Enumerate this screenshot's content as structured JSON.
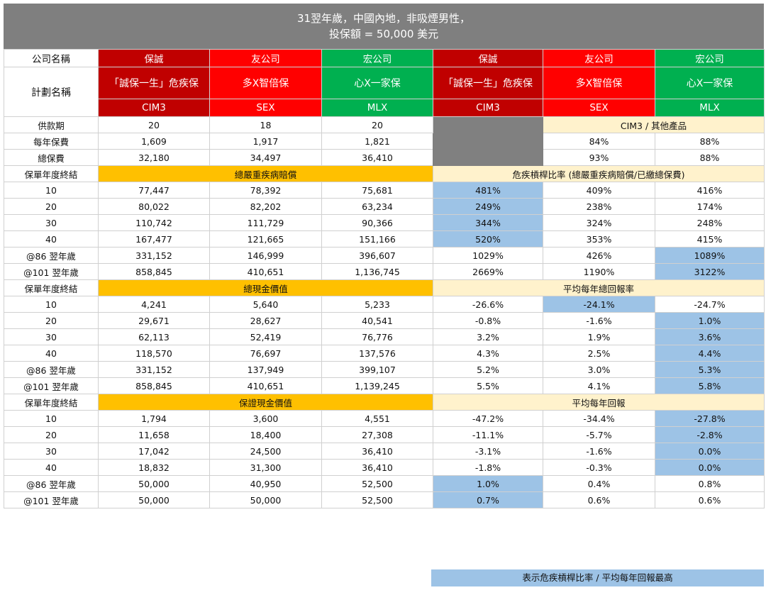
{
  "title": {
    "line1": "31翌年歲，中國內地，非吸煙男性，",
    "line2": "投保額 = 50,000 美元"
  },
  "header": {
    "company_label": "公司名稱",
    "plan_label": "計劃名稱",
    "companies": [
      "保誠",
      "友公司",
      "宏公司",
      "保誠",
      "友公司",
      "宏公司"
    ],
    "plans": [
      "「誠保一生」危疾保",
      "多X智倍保",
      "心X一家保",
      "「誠保一生」危疾保",
      "多X智倍保",
      "心X一家保"
    ],
    "codes": [
      "CIM3",
      "SEX",
      "MLX",
      "CIM3",
      "SEX",
      "MLX"
    ]
  },
  "basics": {
    "compare_label": "CIM3 / 其他產品",
    "rows": [
      {
        "label": "供款期",
        "values": [
          "20",
          "18",
          "20"
        ],
        "ratios": [
          "",
          ""
        ]
      },
      {
        "label": "每年保費",
        "values": [
          "1,609",
          "1,917",
          "1,821"
        ],
        "ratios": [
          "84%",
          "88%"
        ]
      },
      {
        "label": "總保費",
        "values": [
          "32,180",
          "34,497",
          "36,410"
        ],
        "ratios": [
          "93%",
          "88%"
        ]
      }
    ]
  },
  "sections": [
    {
      "label": "保單年度終結",
      "left_title": "總嚴重疾病賠償",
      "right_title": "危疾槓桿比率 (總嚴重疾病賠償/已繳總保費)",
      "rows": [
        {
          "label": "10",
          "values": [
            "77,447",
            "78,392",
            "75,681"
          ],
          "ratios": [
            "481%",
            "409%",
            "416%"
          ],
          "hi": [
            0
          ]
        },
        {
          "label": "20",
          "values": [
            "80,022",
            "82,202",
            "63,234"
          ],
          "ratios": [
            "249%",
            "238%",
            "174%"
          ],
          "hi": [
            0
          ]
        },
        {
          "label": "30",
          "values": [
            "110,742",
            "111,729",
            "90,366"
          ],
          "ratios": [
            "344%",
            "324%",
            "248%"
          ],
          "hi": [
            0
          ]
        },
        {
          "label": "40",
          "values": [
            "167,477",
            "121,665",
            "151,166"
          ],
          "ratios": [
            "520%",
            "353%",
            "415%"
          ],
          "hi": [
            0
          ]
        },
        {
          "label": "@86 翌年歲",
          "values": [
            "331,152",
            "146,999",
            "396,607"
          ],
          "ratios": [
            "1029%",
            "426%",
            "1089%"
          ],
          "hi": [
            2
          ]
        },
        {
          "label": "@101 翌年歲",
          "values": [
            "858,845",
            "410,651",
            "1,136,745"
          ],
          "ratios": [
            "2669%",
            "1190%",
            "3122%"
          ],
          "hi": [
            2
          ]
        }
      ]
    },
    {
      "label": "保單年度終結",
      "left_title": "總現金價值",
      "right_title": "平均每年總回報率",
      "rows": [
        {
          "label": "10",
          "values": [
            "4,241",
            "5,640",
            "5,233"
          ],
          "ratios": [
            "-26.6%",
            "-24.1%",
            "-24.7%"
          ],
          "hi": [
            1
          ]
        },
        {
          "label": "20",
          "values": [
            "29,671",
            "28,627",
            "40,541"
          ],
          "ratios": [
            "-0.8%",
            "-1.6%",
            "1.0%"
          ],
          "hi": [
            2
          ]
        },
        {
          "label": "30",
          "values": [
            "62,113",
            "52,419",
            "76,776"
          ],
          "ratios": [
            "3.2%",
            "1.9%",
            "3.6%"
          ],
          "hi": [
            2
          ]
        },
        {
          "label": "40",
          "values": [
            "118,570",
            "76,697",
            "137,576"
          ],
          "ratios": [
            "4.3%",
            "2.5%",
            "4.4%"
          ],
          "hi": [
            2
          ]
        },
        {
          "label": "@86 翌年歲",
          "values": [
            "331,152",
            "137,949",
            "399,107"
          ],
          "ratios": [
            "5.2%",
            "3.0%",
            "5.3%"
          ],
          "hi": [
            2
          ]
        },
        {
          "label": "@101 翌年歲",
          "values": [
            "858,845",
            "410,651",
            "1,139,245"
          ],
          "ratios": [
            "5.5%",
            "4.1%",
            "5.8%"
          ],
          "hi": [
            2
          ]
        }
      ]
    },
    {
      "label": "保單年度終結",
      "left_title": "保證現金價值",
      "right_title": "平均每年回報",
      "rows": [
        {
          "label": "10",
          "values": [
            "1,794",
            "3,600",
            "4,551"
          ],
          "ratios": [
            "-47.2%",
            "-34.4%",
            "-27.8%"
          ],
          "hi": [
            2
          ]
        },
        {
          "label": "20",
          "values": [
            "11,658",
            "18,400",
            "27,308"
          ],
          "ratios": [
            "-11.1%",
            "-5.7%",
            "-2.8%"
          ],
          "hi": [
            2
          ]
        },
        {
          "label": "30",
          "values": [
            "17,042",
            "24,500",
            "36,410"
          ],
          "ratios": [
            "-3.1%",
            "-1.6%",
            "0.0%"
          ],
          "hi": [
            2
          ]
        },
        {
          "label": "40",
          "values": [
            "18,832",
            "31,300",
            "36,410"
          ],
          "ratios": [
            "-1.8%",
            "-0.3%",
            "0.0%"
          ],
          "hi": [
            2
          ]
        },
        {
          "label": "@86 翌年歲",
          "values": [
            "50,000",
            "40,950",
            "52,500"
          ],
          "ratios": [
            "1.0%",
            "0.4%",
            "0.8%"
          ],
          "hi": [
            0
          ]
        },
        {
          "label": "@101 翌年歲",
          "values": [
            "50,000",
            "50,000",
            "52,500"
          ],
          "ratios": [
            "0.7%",
            "0.6%",
            "0.6%"
          ],
          "hi": [
            0
          ]
        }
      ]
    }
  ],
  "legend": "表示危疾槓桿比率 / 平均每年回報最高",
  "colors": {
    "title_bg": "#7f7f7f",
    "prudential": "#c00000",
    "aia": "#ff0000",
    "manulife": "#00b050",
    "gold_header": "#ffc000",
    "cream_header": "#fff2cc",
    "highlight": "#9dc3e6"
  }
}
